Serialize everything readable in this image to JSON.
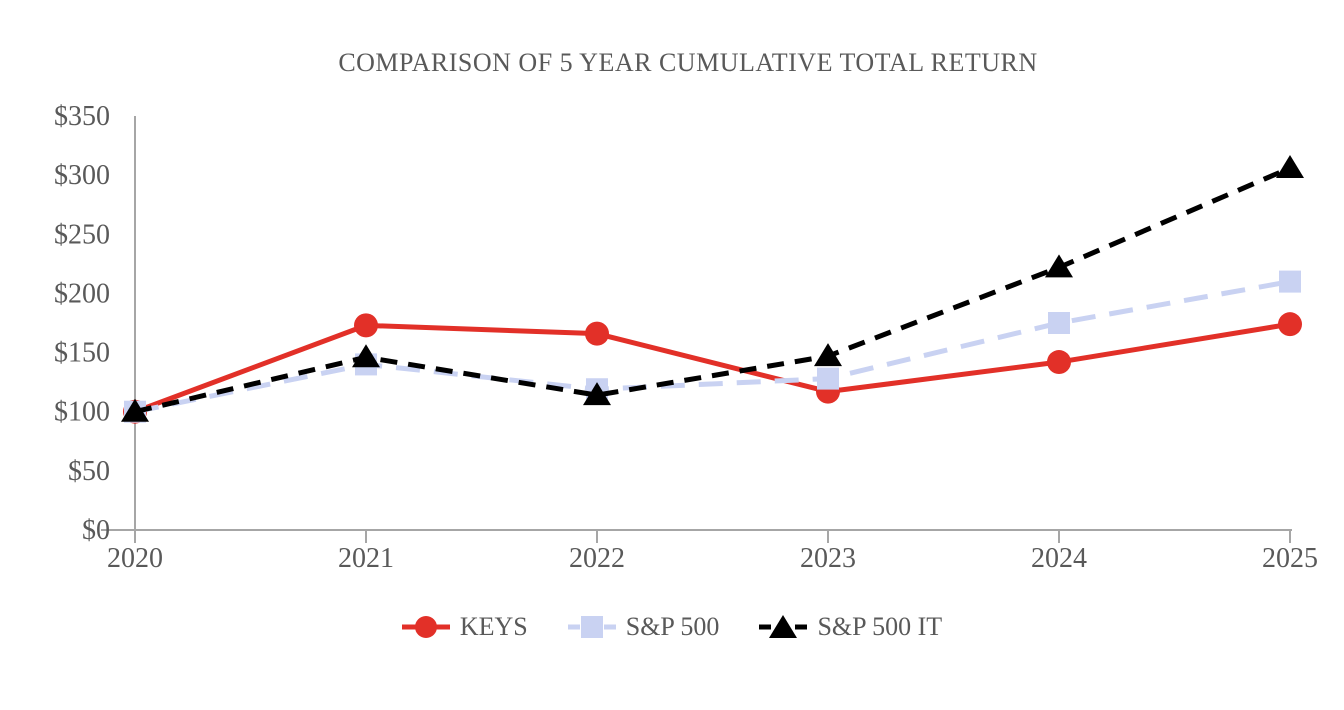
{
  "title": "COMPARISON OF 5 YEAR CUMULATIVE TOTAL RETURN",
  "chart_data": {
    "type": "line",
    "categories": [
      "2020",
      "2021",
      "2022",
      "2023",
      "2024",
      "2025"
    ],
    "series": [
      {
        "name": "KEYS",
        "color": "#e23028",
        "marker": "circle",
        "line_style": "solid",
        "values": [
          100,
          173,
          166,
          117,
          142,
          174
        ]
      },
      {
        "name": "S&P 500",
        "color": "#c9d2f2",
        "marker": "square",
        "line_style": "dashed",
        "values": [
          100,
          140,
          119,
          128,
          175,
          210
        ]
      },
      {
        "name": "S&P 500 IT",
        "color": "#000000",
        "marker": "triangle",
        "line_style": "dashed",
        "values": [
          100,
          146,
          114,
          147,
          222,
          306
        ]
      }
    ],
    "xlabel": "",
    "ylabel": "",
    "ylim": [
      0,
      350
    ],
    "ytick_step": 50,
    "ytick_labels": [
      "$0",
      "$50",
      "$100",
      "$150",
      "$200",
      "$250",
      "$300",
      "$350"
    ],
    "grid": false,
    "legend_position": "bottom"
  },
  "colors": {
    "axis": "#a6a6a6",
    "text": "#595959"
  }
}
